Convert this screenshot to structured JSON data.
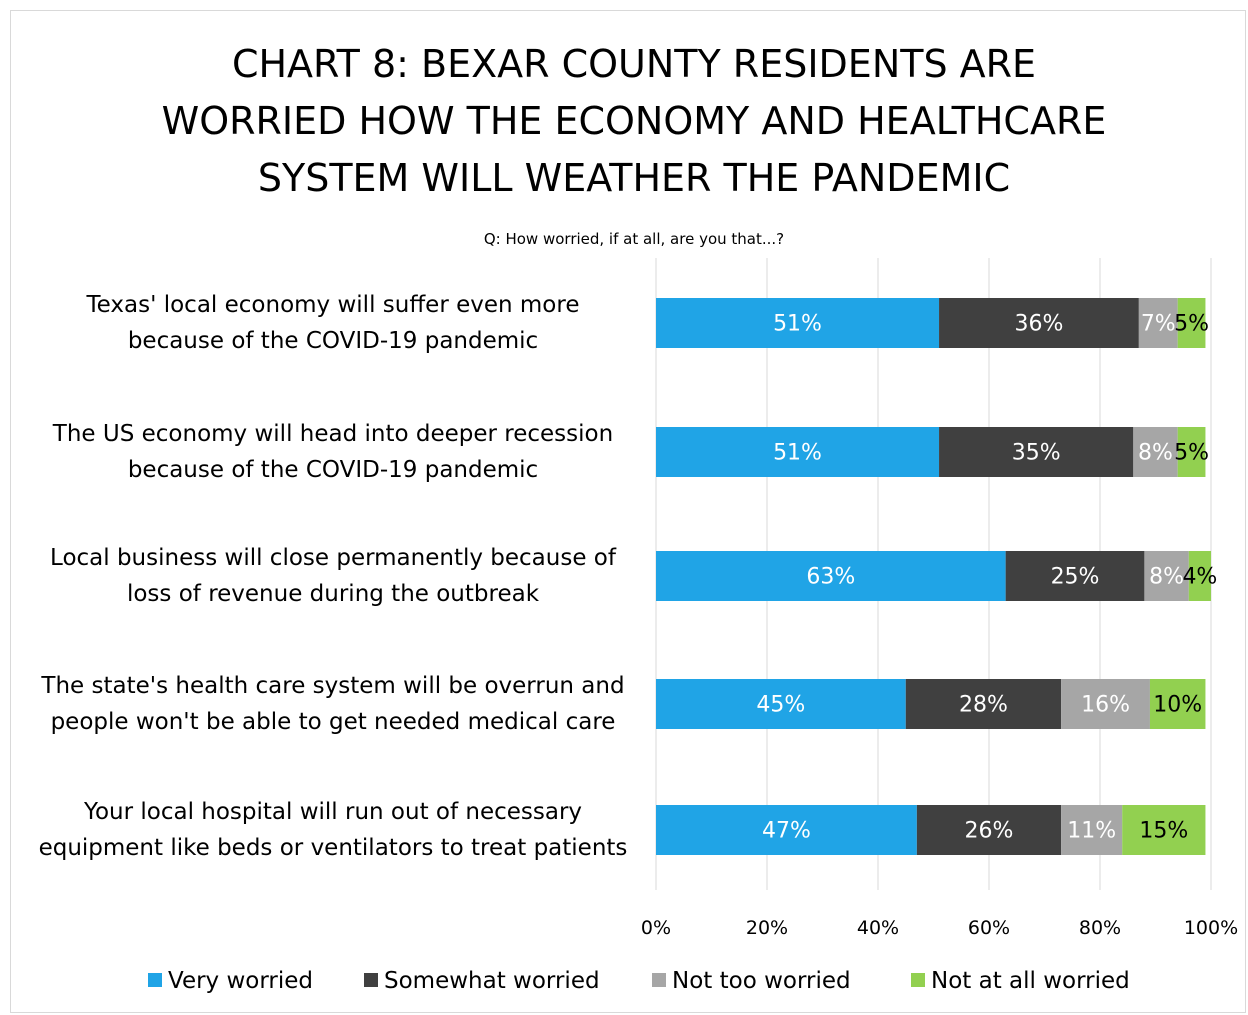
{
  "chart_data": {
    "type": "stacked-bar-horizontal",
    "title": "CHART 8: BEXAR COUNTY RESIDENTS ARE WORRIED HOW THE ECONOMY AND HEALTHCARE SYSTEM WILL WEATHER THE PANDEMIC",
    "subtitle": "Q: How worried, if at all, are you that...?",
    "categories": [
      "Texas' local economy will suffer even more because of the COVID-19 pandemic",
      "The US economy will head into deeper recession because of the COVID-19 pandemic",
      "Local business will close permanently because of loss of revenue during the outbreak",
      "The state's health care system will be overrun and people won't be able to get needed medical care",
      "Your local hospital will run out of necessary equipment like beds or ventilators to treat patients"
    ],
    "series": [
      {
        "name": "Very worried",
        "color": "#20a4e6",
        "label_color": "#ffffff",
        "values": [
          51,
          51,
          63,
          45,
          47
        ],
        "value_labels": [
          "51%",
          "51%",
          "63%",
          "45%",
          "47%"
        ]
      },
      {
        "name": "Somewhat worried",
        "color": "#404040",
        "label_color": "#ffffff",
        "values": [
          36,
          35,
          25,
          28,
          26
        ],
        "value_labels": [
          "36%",
          "35%",
          "25%",
          "28%",
          "26%"
        ]
      },
      {
        "name": "Not too worried",
        "color": "#a6a6a6",
        "label_color": "#ffffff",
        "values": [
          7,
          8,
          8,
          16,
          11
        ],
        "value_labels": [
          "7%",
          "8%",
          "8%",
          "16%",
          "11%"
        ]
      },
      {
        "name": "Not at all worried",
        "color": "#92d050",
        "label_color": "#000000",
        "values": [
          5,
          5,
          4,
          10,
          15
        ],
        "value_labels": [
          "5%",
          "5%",
          "4%",
          "10%",
          "15%"
        ]
      }
    ],
    "xlim": [
      0,
      100
    ],
    "xticks": [
      {
        "value": 0,
        "label": "0%"
      },
      {
        "value": 20,
        "label": "20%"
      },
      {
        "value": 40,
        "label": "40%"
      },
      {
        "value": 60,
        "label": "60%"
      },
      {
        "value": 80,
        "label": "80%"
      },
      {
        "value": 100,
        "label": "100%"
      }
    ],
    "grid": true,
    "legend": "bottom"
  }
}
